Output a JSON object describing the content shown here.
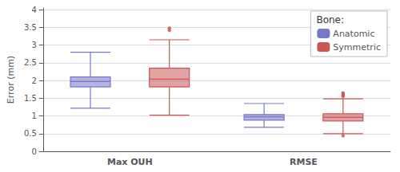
{
  "chart_data": {
    "type": "boxplot",
    "ylabel": "Error (mm)",
    "categories": [
      "Max OUH",
      "RMSE"
    ],
    "series": [
      {
        "name": "Anatomic",
        "color": "#7878c8",
        "values": [
          [
            1.22,
            1.82,
            1.97,
            2.1,
            2.8
          ],
          [
            0.68,
            0.88,
            0.97,
            1.04,
            1.35
          ]
        ],
        "outliers": [
          [],
          []
        ]
      },
      {
        "name": "Symmetric",
        "color": "#cc5555",
        "values": [
          [
            1.02,
            1.82,
            2.04,
            2.35,
            3.15
          ],
          [
            0.5,
            0.86,
            0.96,
            1.06,
            1.48
          ]
        ],
        "outliers": [
          [
            3.42,
            3.48
          ],
          [
            0.44,
            1.55,
            1.58,
            1.62,
            1.65
          ]
        ]
      }
    ],
    "ylim": [
      0,
      4.05
    ],
    "yticks": [
      0,
      0.5,
      1,
      1.5,
      2,
      2.5,
      3,
      3.5,
      4
    ],
    "grid": true,
    "legend": "upper right",
    "legend_title": "Bone:"
  }
}
